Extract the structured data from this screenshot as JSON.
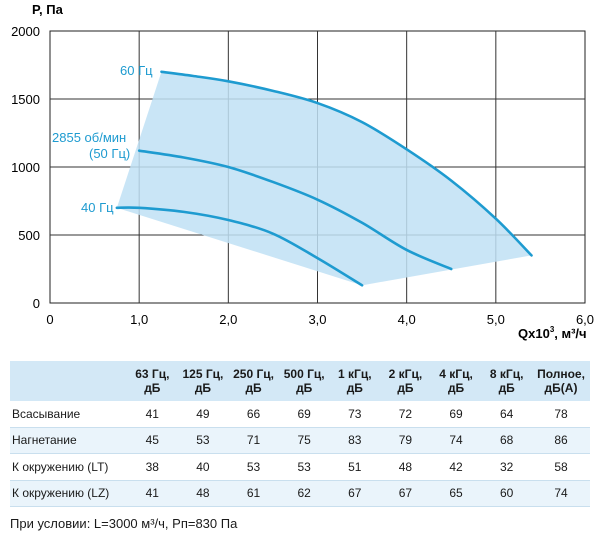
{
  "chart_data": {
    "type": "line",
    "ylabel": "P, Па",
    "xlabel": "Qx10³, м³/ч",
    "xlim": [
      0,
      6.0
    ],
    "ylim": [
      0,
      2000
    ],
    "x_ticks": [
      "0",
      "1,0",
      "2,0",
      "3,0",
      "4,0",
      "5,0",
      "6,0"
    ],
    "y_ticks": [
      "0",
      "500",
      "1000",
      "1500",
      "2000"
    ],
    "grid": true,
    "line_color": "#1e9bd0",
    "fill_color": "#bfe0f5",
    "series": [
      {
        "name": "60 Гц",
        "x": [
          1.25,
          1.6,
          2.0,
          2.5,
          3.0,
          3.5,
          4.0,
          4.5,
          5.0,
          5.4
        ],
        "y": [
          1700,
          1670,
          1630,
          1560,
          1470,
          1330,
          1130,
          900,
          620,
          350
        ]
      },
      {
        "name": "2855 об/мин (50 Гц)",
        "x": [
          1.0,
          1.5,
          2.0,
          2.5,
          3.0,
          3.5,
          4.0,
          4.5
        ],
        "y": [
          1120,
          1070,
          1000,
          890,
          760,
          590,
          390,
          250
        ]
      },
      {
        "name": "40 Гц",
        "x": [
          0.75,
          1.0,
          1.5,
          2.0,
          2.5,
          3.0,
          3.5
        ],
        "y": [
          700,
          700,
          670,
          610,
          510,
          330,
          130
        ]
      }
    ],
    "annotations": [
      "60 Гц",
      "2855 об/мин",
      "(50 Гц)",
      "40 Гц"
    ]
  },
  "table": {
    "headers": [
      [
        "63 Гц,",
        "дБ"
      ],
      [
        "125 Гц,",
        "дБ"
      ],
      [
        "250 Гц,",
        "дБ"
      ],
      [
        "500 Гц,",
        "дБ"
      ],
      [
        "1 кГц,",
        "дБ"
      ],
      [
        "2 кГц,",
        "дБ"
      ],
      [
        "4 кГц,",
        "дБ"
      ],
      [
        "8 кГц,",
        "дБ"
      ],
      [
        "Полное,",
        "дБ(А)"
      ]
    ],
    "rows": [
      {
        "label": "Всасывание",
        "values": [
          "41",
          "49",
          "66",
          "69",
          "73",
          "72",
          "69",
          "64",
          "78"
        ]
      },
      {
        "label": "Нагнетание",
        "values": [
          "45",
          "53",
          "71",
          "75",
          "83",
          "79",
          "74",
          "68",
          "86"
        ]
      },
      {
        "label": "К окружению (LT)",
        "values": [
          "38",
          "40",
          "53",
          "53",
          "51",
          "48",
          "42",
          "32",
          "58"
        ]
      },
      {
        "label": "К окружению (LZ)",
        "values": [
          "41",
          "48",
          "61",
          "62",
          "67",
          "67",
          "65",
          "60",
          "74"
        ]
      }
    ]
  },
  "note": "При условии: L=3000 м³/ч, Рп=830 Па"
}
